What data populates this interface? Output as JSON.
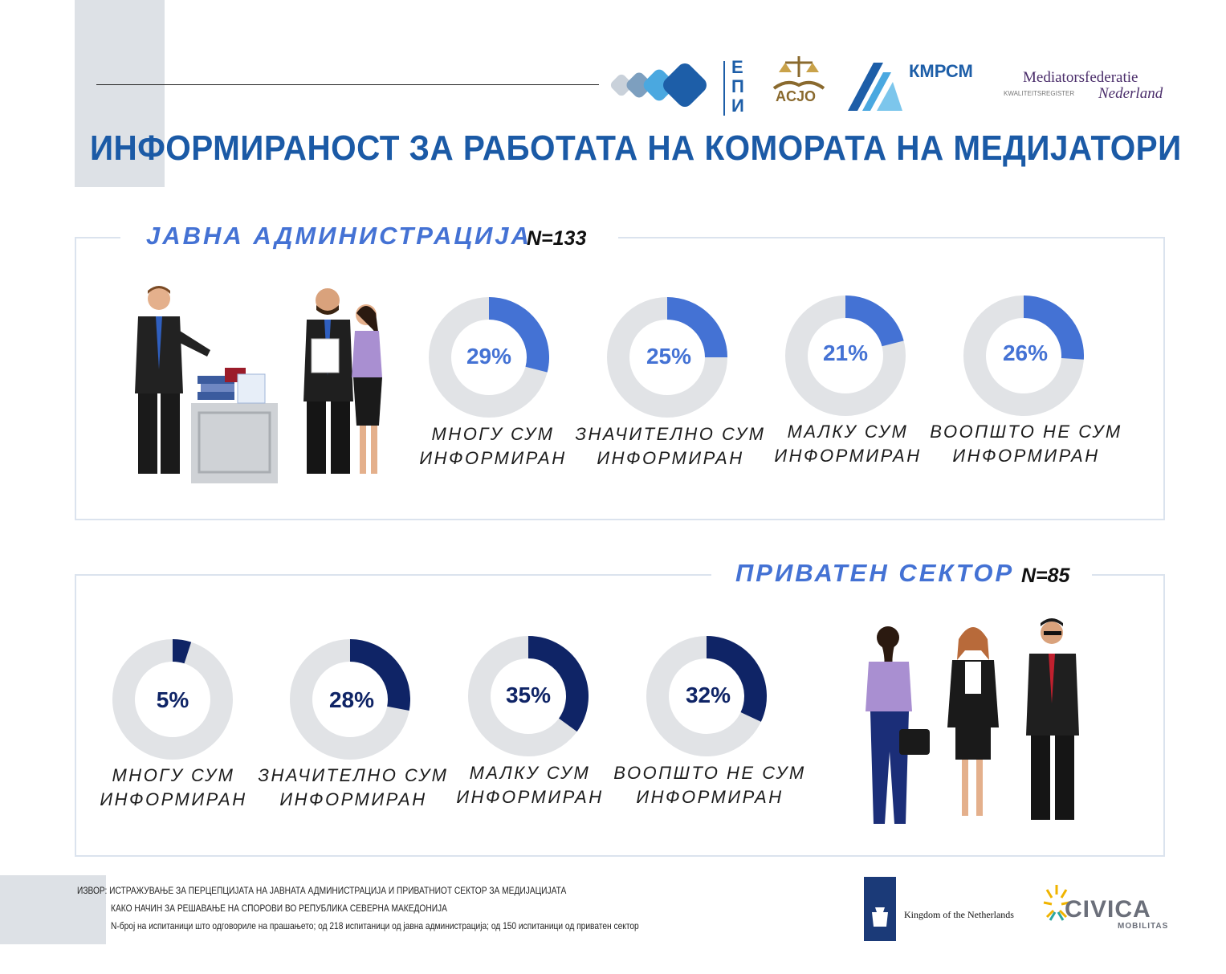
{
  "title": "ИНФОРМИРАНОСТ ЗА РАБОТАТА НА КОМОРАТА НА МЕДИЈАТОРИ",
  "logos": {
    "epi": "ЕПИ",
    "acjo": "ACJO",
    "kmrsm": "КМРСМ",
    "mediators_top": "Mediatorsfederatie",
    "mediators_bottom": "Nederland",
    "mediators_left": "KWALITEITSREGISTER",
    "netherlands": "Kingdom of the Netherlands",
    "civica": "CIVICA",
    "civica_sub": "MOBILITAS"
  },
  "colors": {
    "public_accent": "#4472d4",
    "private_accent": "#0f2466",
    "track": "#e1e3e6",
    "title": "#1b5aa6"
  },
  "chart_data": [
    {
      "type": "pie",
      "title": "ЈАВНА АДМИНИСТРАЦИЈА",
      "n_label": "N=133",
      "categories": [
        "МНОГУ СУМ ИНФОРМИРАН",
        "ЗНАЧИТЕЛНО СУМ ИНФОРМИРАН",
        "МАЛКУ СУМ ИНФОРМИРАН",
        "ВООПШТО НЕ СУМ ИНФОРМИРАН"
      ],
      "values": [
        29,
        25,
        21,
        26
      ],
      "value_labels": [
        "29%",
        "25%",
        "21%",
        "26%"
      ],
      "label_lines": [
        [
          "МНОГУ СУМ",
          "ИНФОРМИРАН"
        ],
        [
          "ЗНАЧИТЕЛНО СУМ",
          "ИНФОРМИРАН"
        ],
        [
          "МАЛКУ СУМ",
          "ИНФОРМИРАН"
        ],
        [
          "ВООПШТО НЕ СУМ",
          "ИНФОРМИРАН"
        ]
      ]
    },
    {
      "type": "pie",
      "title": "ПРИВАТЕН СЕКТОР",
      "n_label": "N=85",
      "categories": [
        "МНОГУ СУМ ИНФОРМИРАН",
        "ЗНАЧИТЕЛНО СУМ ИНФОРМИРАН",
        "МАЛКУ СУМ ИНФОРМИРАН",
        "ВООПШТО НЕ СУМ ИНФОРМИРАН"
      ],
      "values": [
        5,
        28,
        35,
        32
      ],
      "value_labels": [
        "5%",
        "28%",
        "35%",
        "32%"
      ],
      "label_lines": [
        [
          "МНОГУ СУМ",
          "ИНФОРМИРАН"
        ],
        [
          "ЗНАЧИТЕЛНО СУМ",
          "ИНФОРМИРАН"
        ],
        [
          "МАЛКУ СУМ",
          "ИНФОРМИРАН"
        ],
        [
          "ВООПШТО НЕ СУМ",
          "ИНФОРМИРАН"
        ]
      ]
    }
  ],
  "footer": {
    "line1": "ИЗВОР: ИСТРАЖУВАЊЕ ЗА ПЕРЦЕПЦИЈАТА НА ЈАВНАТА АДМИНИСТРАЦИЈА И ПРИВАТНИОТ СЕКТОР ЗА МЕДИЈАЦИЈАТА",
    "line2": "КАКО НАЧИН ЗА РЕШАВАЊЕ НА СПОРОВИ ВО РЕПУБЛИКА СЕВЕРНА МАКЕДОНИЈА",
    "line3": "N-број на испитаници што одговориле на прашањето; од 218 испитаници од јавна администрација; од 150 испитаници од приватен сектор"
  }
}
